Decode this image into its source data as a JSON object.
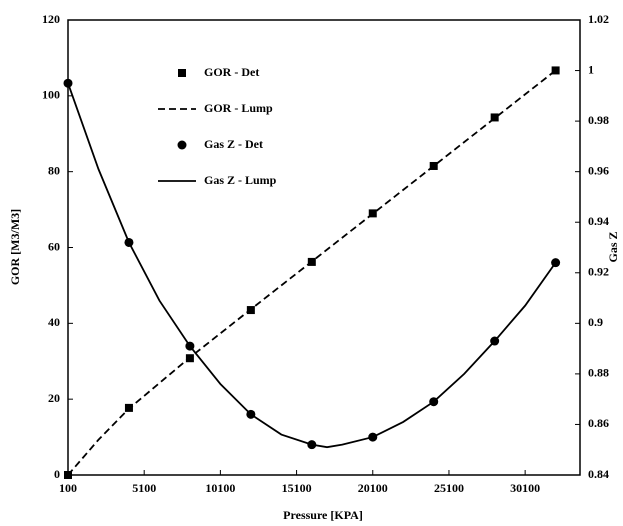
{
  "chart_data": {
    "type": "line",
    "xlabel": "Pressure [KPA]",
    "ylabel": "GOR [M3/M3]",
    "y2label": "Gas Z",
    "xlim": [
      100,
      33700
    ],
    "xticks": [
      100,
      5100,
      10100,
      15100,
      20100,
      25100,
      30100
    ],
    "ylim": [
      0,
      120
    ],
    "yticks": [
      0,
      20,
      40,
      60,
      80,
      100,
      120
    ],
    "y2lim": [
      0.84,
      1.02
    ],
    "y2ticks": [
      0.84,
      0.86,
      0.88,
      0.9,
      0.92,
      0.94,
      0.96,
      0.98,
      1,
      1.02
    ],
    "legend": "upper left",
    "series": [
      {
        "name": "GOR - Det",
        "color": "#000000",
        "marker": "square",
        "axis": "y",
        "x": [
          100,
          4100,
          8100,
          12100,
          16100,
          20100,
          24100,
          28100,
          32100
        ],
        "values": [
          0,
          17.7,
          30.8,
          43.5,
          56.2,
          69,
          81.5,
          94.3,
          106.7
        ]
      },
      {
        "name": "GOR - Lump",
        "color": "#000000",
        "line": "dashed",
        "axis": "y",
        "x": [
          100,
          2100,
          4100,
          8100,
          12100,
          16100,
          20100,
          24100,
          28100,
          32100
        ],
        "values": [
          0,
          9.3,
          17.5,
          31,
          43.7,
          56.3,
          68.9,
          81.5,
          94.1,
          106.7
        ]
      },
      {
        "name": "Gas Z - Det",
        "color": "#000000",
        "marker": "circle",
        "axis": "y2",
        "x": [
          100,
          4100,
          8100,
          12100,
          16100,
          20100,
          24100,
          28100,
          32100
        ],
        "values": [
          0.995,
          0.932,
          0.891,
          0.864,
          0.852,
          0.855,
          0.869,
          0.893,
          0.924
        ]
      },
      {
        "name": "Gas Z - Lump",
        "color": "#000000",
        "line": "solid",
        "axis": "y2",
        "x": [
          100,
          2100,
          4100,
          6100,
          8100,
          10100,
          12100,
          14100,
          16100,
          17100,
          18100,
          20100,
          22100,
          24100,
          26100,
          28100,
          30100,
          32100
        ],
        "values": [
          0.995,
          0.961,
          0.932,
          0.909,
          0.891,
          0.876,
          0.864,
          0.856,
          0.852,
          0.851,
          0.852,
          0.855,
          0.861,
          0.869,
          0.88,
          0.893,
          0.907,
          0.924
        ]
      }
    ]
  }
}
